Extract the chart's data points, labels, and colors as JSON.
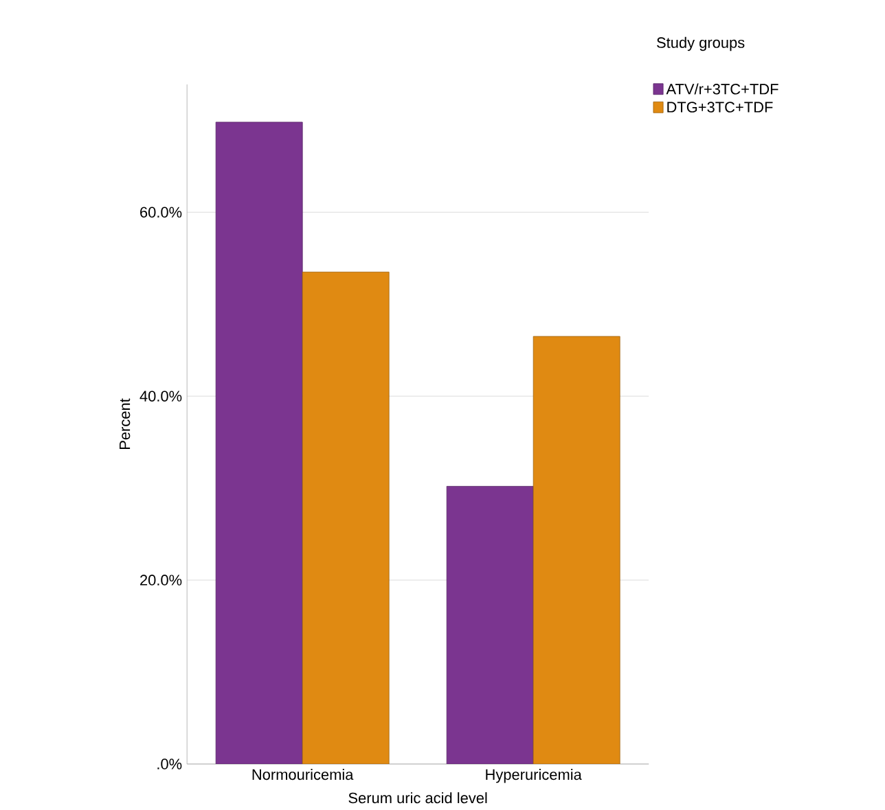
{
  "chart_data": {
    "type": "bar",
    "xlabel": "Serum uric acid level",
    "ylabel": "Percent",
    "legend_title": "Study groups",
    "categories": [
      "Normouricemia",
      "Hyperuricemia"
    ],
    "series": [
      {
        "name": "ATV/r+3TC+TDF",
        "color": "#7b3590",
        "values": [
          69.8,
          30.2
        ]
      },
      {
        "name": "DTG+3TC+TDF",
        "color": "#e08a12",
        "values": [
          53.5,
          46.5
        ]
      }
    ],
    "ylim": [
      0,
      73.9
    ],
    "yticks": [
      {
        "value": 0,
        "label": ".0%"
      },
      {
        "value": 20,
        "label": "20.0%"
      },
      {
        "value": 40,
        "label": "40.0%"
      },
      {
        "value": 60,
        "label": "60.0%"
      }
    ],
    "grid": "y",
    "legend": "top right"
  }
}
